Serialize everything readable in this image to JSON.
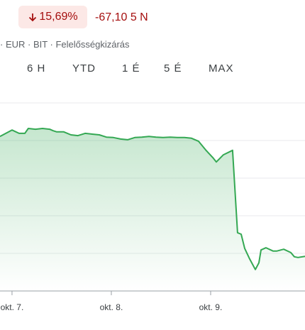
{
  "header": {
    "change": "15,69%",
    "change_abs": "-67,10 5 N",
    "info": "· EUR · BIT · Felelősségkizárás"
  },
  "tabs": [
    "6 H",
    "YTD",
    "1 É",
    "5 É",
    "MAX"
  ],
  "chart_data": {
    "type": "line",
    "color": "#34a853",
    "grid": true,
    "x": [
      6.879,
      7,
      7.071,
      7.129,
      7.164,
      7.236,
      7.307,
      7.379,
      7.414,
      7.45,
      7.521,
      7.593,
      7.664,
      7.736,
      7.807,
      7.879,
      7.95,
      8.021,
      8.093,
      8.164,
      8.236,
      8.307,
      8.379,
      8.45,
      8.521,
      8.593,
      8.664,
      8.736,
      8.807,
      8.879,
      8.95,
      9.021,
      9.057,
      9.129,
      9.221,
      9.271,
      9.307,
      9.343,
      9.393,
      9.45,
      9.486,
      9.507,
      9.557,
      9.629,
      9.664,
      9.736,
      9.807,
      9.843,
      9.879,
      9.95
    ],
    "values": [
      4.11,
      4.28,
      4.19,
      4.19,
      4.32,
      4.3,
      4.32,
      4.3,
      4.26,
      4.23,
      4.23,
      4.15,
      4.13,
      4.19,
      4.17,
      4.15,
      4.09,
      4.08,
      4.04,
      4.02,
      4.08,
      4.09,
      4.11,
      4.09,
      4.08,
      4.09,
      4.08,
      4.08,
      4.06,
      3.98,
      3.75,
      3.55,
      3.43,
      3.62,
      3.74,
      1.55,
      1.51,
      1.13,
      0.85,
      0.57,
      0.75,
      1.09,
      1.15,
      1.06,
      1.06,
      1.11,
      1.02,
      0.91,
      0.89,
      0.92
    ],
    "xlim": [
      6.879,
      9.95
    ],
    "xticks": [
      {
        "value": 7,
        "label": "okt. 7."
      },
      {
        "value": 8,
        "label": "okt. 8."
      },
      {
        "value": 9,
        "label": "okt. 9."
      }
    ],
    "ylim": [
      0,
      5
    ],
    "yticks": [
      1,
      2,
      3,
      4,
      5
    ]
  }
}
